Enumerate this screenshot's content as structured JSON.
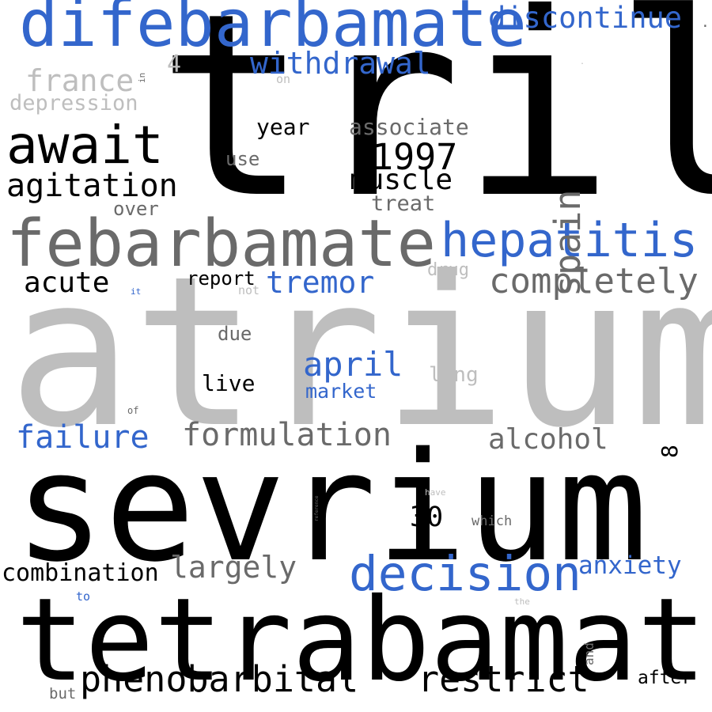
{
  "colors": {
    "background": "#ffffff",
    "black": "#000000",
    "dark_gray": "#6a6a6a",
    "light_gray": "#bebebe",
    "blue": "#3366cc"
  },
  "words": [
    {
      "text": "tril",
      "color": "black",
      "vertical": false
    },
    {
      "text": "atrium",
      "color": "light_gray",
      "vertical": false
    },
    {
      "text": "sevrium",
      "color": "black",
      "vertical": false
    },
    {
      "text": "tetrabamate",
      "color": "black",
      "vertical": false
    },
    {
      "text": "difebarbamate",
      "color": "blue",
      "vertical": false
    },
    {
      "text": "febarbamate",
      "color": "dark_gray",
      "vertical": false
    },
    {
      "text": "hepatitis",
      "color": "blue",
      "vertical": false
    },
    {
      "text": "await",
      "color": "black",
      "vertical": false
    },
    {
      "text": "decision",
      "color": "blue",
      "vertical": false
    },
    {
      "text": "phenobarbital",
      "color": "black",
      "vertical": false
    },
    {
      "text": "restrict",
      "color": "black",
      "vertical": false
    },
    {
      "text": "completely",
      "color": "dark_gray",
      "vertical": false
    },
    {
      "text": "formulation",
      "color": "dark_gray",
      "vertical": false
    },
    {
      "text": "agitation",
      "color": "black",
      "vertical": false
    },
    {
      "text": "discontinue",
      "color": "blue",
      "vertical": false
    },
    {
      "text": "withdrawal",
      "color": "blue",
      "vertical": false
    },
    {
      "text": "largely",
      "color": "dark_gray",
      "vertical": false
    },
    {
      "text": "1997",
      "color": "black",
      "vertical": false
    },
    {
      "text": "spain",
      "color": "dark_gray",
      "vertical": true
    },
    {
      "text": "france",
      "color": "light_gray",
      "vertical": false
    },
    {
      "text": "failure",
      "color": "blue",
      "vertical": false
    },
    {
      "text": "muscle",
      "color": "black",
      "vertical": false
    },
    {
      "text": "alcohol",
      "color": "dark_gray",
      "vertical": false
    },
    {
      "text": "tremor",
      "color": "blue",
      "vertical": false
    },
    {
      "text": "april",
      "color": "blue",
      "vertical": false
    },
    {
      "text": "acute",
      "color": "black",
      "vertical": false
    },
    {
      "text": "combination",
      "color": "black",
      "vertical": false
    },
    {
      "text": "anxiety",
      "color": "blue",
      "vertical": false
    },
    {
      "text": "depression",
      "color": "light_gray",
      "vertical": false
    },
    {
      "text": "associate",
      "color": "dark_gray",
      "vertical": false
    },
    {
      "text": "year",
      "color": "black",
      "vertical": false
    },
    {
      "text": "30",
      "color": "black",
      "vertical": false
    },
    {
      "text": "treat",
      "color": "dark_gray",
      "vertical": false
    },
    {
      "text": "over",
      "color": "dark_gray",
      "vertical": false
    },
    {
      "text": "use",
      "color": "dark_gray",
      "vertical": false
    },
    {
      "text": "live",
      "color": "black",
      "vertical": false
    },
    {
      "text": "market",
      "color": "blue",
      "vertical": false
    },
    {
      "text": "long",
      "color": "light_gray",
      "vertical": false
    },
    {
      "text": "after",
      "color": "black",
      "vertical": false
    },
    {
      "text": "report",
      "color": "black",
      "vertical": false
    },
    {
      "text": "due",
      "color": "dark_gray",
      "vertical": false
    },
    {
      "text": "4",
      "color": "light_gray",
      "vertical": false
    },
    {
      "text": "drug",
      "color": "light_gray",
      "vertical": false
    },
    {
      "text": "8",
      "color": "black",
      "vertical": true
    },
    {
      "text": "which",
      "color": "dark_gray",
      "vertical": false
    },
    {
      "text": "but",
      "color": "dark_gray",
      "vertical": false
    },
    {
      "text": "on",
      "color": "light_gray",
      "vertical": false
    },
    {
      "text": "not",
      "color": "light_gray",
      "vertical": false
    },
    {
      "text": "to",
      "color": "blue",
      "vertical": false
    },
    {
      "text": "and",
      "color": "dark_gray",
      "vertical": true
    },
    {
      "text": "have",
      "color": "light_gray",
      "vertical": false
    },
    {
      "text": "the",
      "color": "light_gray",
      "vertical": false
    },
    {
      "text": "of",
      "color": "dark_gray",
      "vertical": false
    },
    {
      "text": "it",
      "color": "blue",
      "vertical": false
    },
    {
      "text": "in",
      "color": "dark_gray",
      "vertical": true
    },
    {
      "text": "reference",
      "color": "dark_gray",
      "vertical": true
    },
    {
      "text": ".",
      "color": "dark_gray",
      "vertical": false
    },
    {
      "text": ".",
      "color": "light_gray",
      "vertical": false
    }
  ]
}
